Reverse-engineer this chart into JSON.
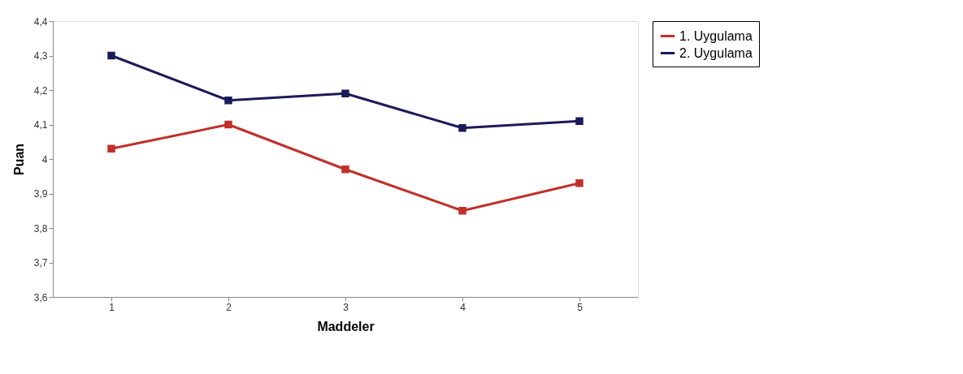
{
  "chart_data": {
    "type": "line",
    "xlabel": "Maddeler",
    "ylabel": "Puan",
    "categories": [
      "1",
      "2",
      "3",
      "4",
      "5"
    ],
    "series": [
      {
        "name": "1. Uygulama",
        "color": "#c0302a",
        "values": [
          4.03,
          4.1,
          3.97,
          3.85,
          3.93
        ]
      },
      {
        "name": "2. Uygulama",
        "color": "#1a1a5a",
        "values": [
          4.3,
          4.17,
          4.19,
          4.09,
          4.11
        ]
      }
    ],
    "ylim": [
      3.6,
      4.4
    ],
    "yticks": [
      {
        "value": 3.6,
        "label": "3,6"
      },
      {
        "value": 3.7,
        "label": "3,7"
      },
      {
        "value": 3.8,
        "label": "3,8"
      },
      {
        "value": 3.9,
        "label": "3,9"
      },
      {
        "value": 4,
        "label": "4"
      },
      {
        "value": 4.1,
        "label": "4,1"
      },
      {
        "value": 4.2,
        "label": "4,2"
      },
      {
        "value": 4.3,
        "label": "4,3"
      },
      {
        "value": 4.4,
        "label": "4,4"
      }
    ],
    "grid": false,
    "legend": "right",
    "marker": "square",
    "line_style": "solid"
  }
}
